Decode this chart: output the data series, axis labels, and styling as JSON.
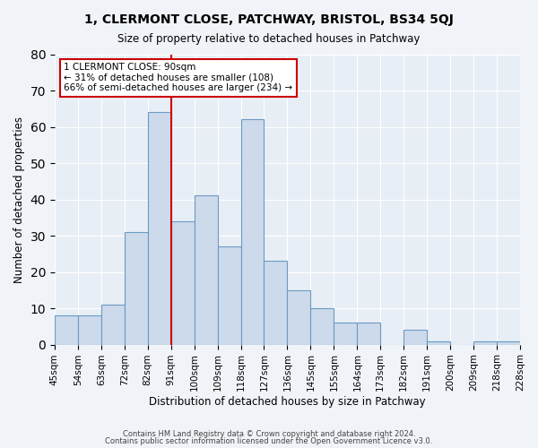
{
  "title": "1, CLERMONT CLOSE, PATCHWAY, BRISTOL, BS34 5QJ",
  "subtitle": "Size of property relative to detached houses in Patchway",
  "xlabel": "Distribution of detached houses by size in Patchway",
  "ylabel": "Number of detached properties",
  "bar_color": "#cddaeb",
  "bar_edge_color": "#6a9bc3",
  "background_color": "#e8eef5",
  "grid_color": "#ffffff",
  "bin_labels": [
    "45sqm",
    "54sqm",
    "63sqm",
    "72sqm",
    "82sqm",
    "91sqm",
    "100sqm",
    "109sqm",
    "118sqm",
    "127sqm",
    "136sqm",
    "145sqm",
    "155sqm",
    "164sqm",
    "173sqm",
    "182sqm",
    "191sqm",
    "200sqm",
    "209sqm",
    "218sqm",
    "228sqm"
  ],
  "counts": [
    8,
    8,
    11,
    31,
    64,
    34,
    41,
    27,
    62,
    23,
    15,
    10,
    6,
    6,
    0,
    4,
    1,
    0,
    1,
    1
  ],
  "vline_color": "#cc0000",
  "annotation_title": "1 CLERMONT CLOSE: 90sqm",
  "annotation_line1": "← 31% of detached houses are smaller (108)",
  "annotation_line2": "66% of semi-detached houses are larger (234) →",
  "annotation_box_edge": "#cc0000",
  "ylim": [
    0,
    80
  ],
  "yticks": [
    0,
    10,
    20,
    30,
    40,
    50,
    60,
    70,
    80
  ],
  "footer1": "Contains HM Land Registry data © Crown copyright and database right 2024.",
  "footer2": "Contains public sector information licensed under the Open Government Licence v3.0."
}
